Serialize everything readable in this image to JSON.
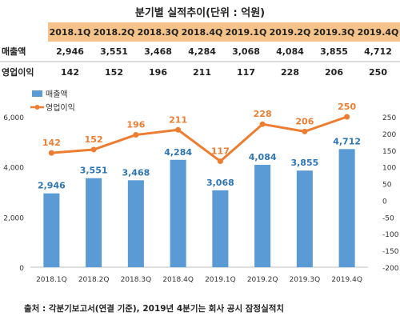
{
  "title": "분기별 실적추이(단위 : 억원)",
  "table": {
    "headers": [
      "2018.1Q",
      "2018.2Q",
      "2018.3Q",
      "2018.4Q",
      "2019.1Q",
      "2019.2Q",
      "2019.3Q",
      "2019.4Q"
    ],
    "rows": [
      {
        "label": "매출액",
        "values": [
          "2,946",
          "3,551",
          "3,468",
          "4,284",
          "3,068",
          "4,084",
          "3,855",
          "4,712"
        ]
      },
      {
        "label": "영업이익",
        "values": [
          "142",
          "152",
          "196",
          "211",
          "117",
          "228",
          "206",
          "250"
        ]
      }
    ]
  },
  "chart_data": {
    "type": "bar+line",
    "categories": [
      "2018.1Q",
      "2018.2Q",
      "2018.3Q",
      "2018.4Q",
      "2019.1Q",
      "2019.2Q",
      "2019.3Q",
      "2019.4Q"
    ],
    "series": [
      {
        "name": "매출액",
        "type": "bar",
        "axis": "left",
        "values": [
          2946,
          3551,
          3468,
          4284,
          3068,
          4084,
          3855,
          4712
        ],
        "labels": [
          "2,946",
          "3,551",
          "3,468",
          "4,284",
          "3,068",
          "4,084",
          "3,855",
          "4,712"
        ],
        "color": "#5b9bd5"
      },
      {
        "name": "영업이익",
        "type": "line",
        "axis": "right",
        "values": [
          142,
          152,
          196,
          211,
          117,
          228,
          206,
          250
        ],
        "labels": [
          "142",
          "152",
          "196",
          "211",
          "117",
          "228",
          "206",
          "250"
        ],
        "color": "#ed7d31"
      }
    ],
    "y_left": {
      "range": [
        0,
        6000
      ],
      "ticks": [
        "0",
        "2,000",
        "4,000",
        "6,000"
      ]
    },
    "y_right": {
      "range": [
        -200,
        250
      ],
      "ticks": [
        "-200",
        "-150",
        "-100",
        "-50",
        "0",
        "50",
        "100",
        "150",
        "200",
        "250"
      ]
    },
    "legend_position": "top-left",
    "grid": false
  },
  "footer": "출처 : 각분기보고서(연결 기준), 2019년 4분기는 회사 공시 잠정실적치",
  "colors": {
    "bar": "#5b9bd5",
    "line": "#ed7d31",
    "header_bg": "#f6c48a",
    "bar_label": "#2e75b6",
    "line_label": "#ed7d31"
  }
}
